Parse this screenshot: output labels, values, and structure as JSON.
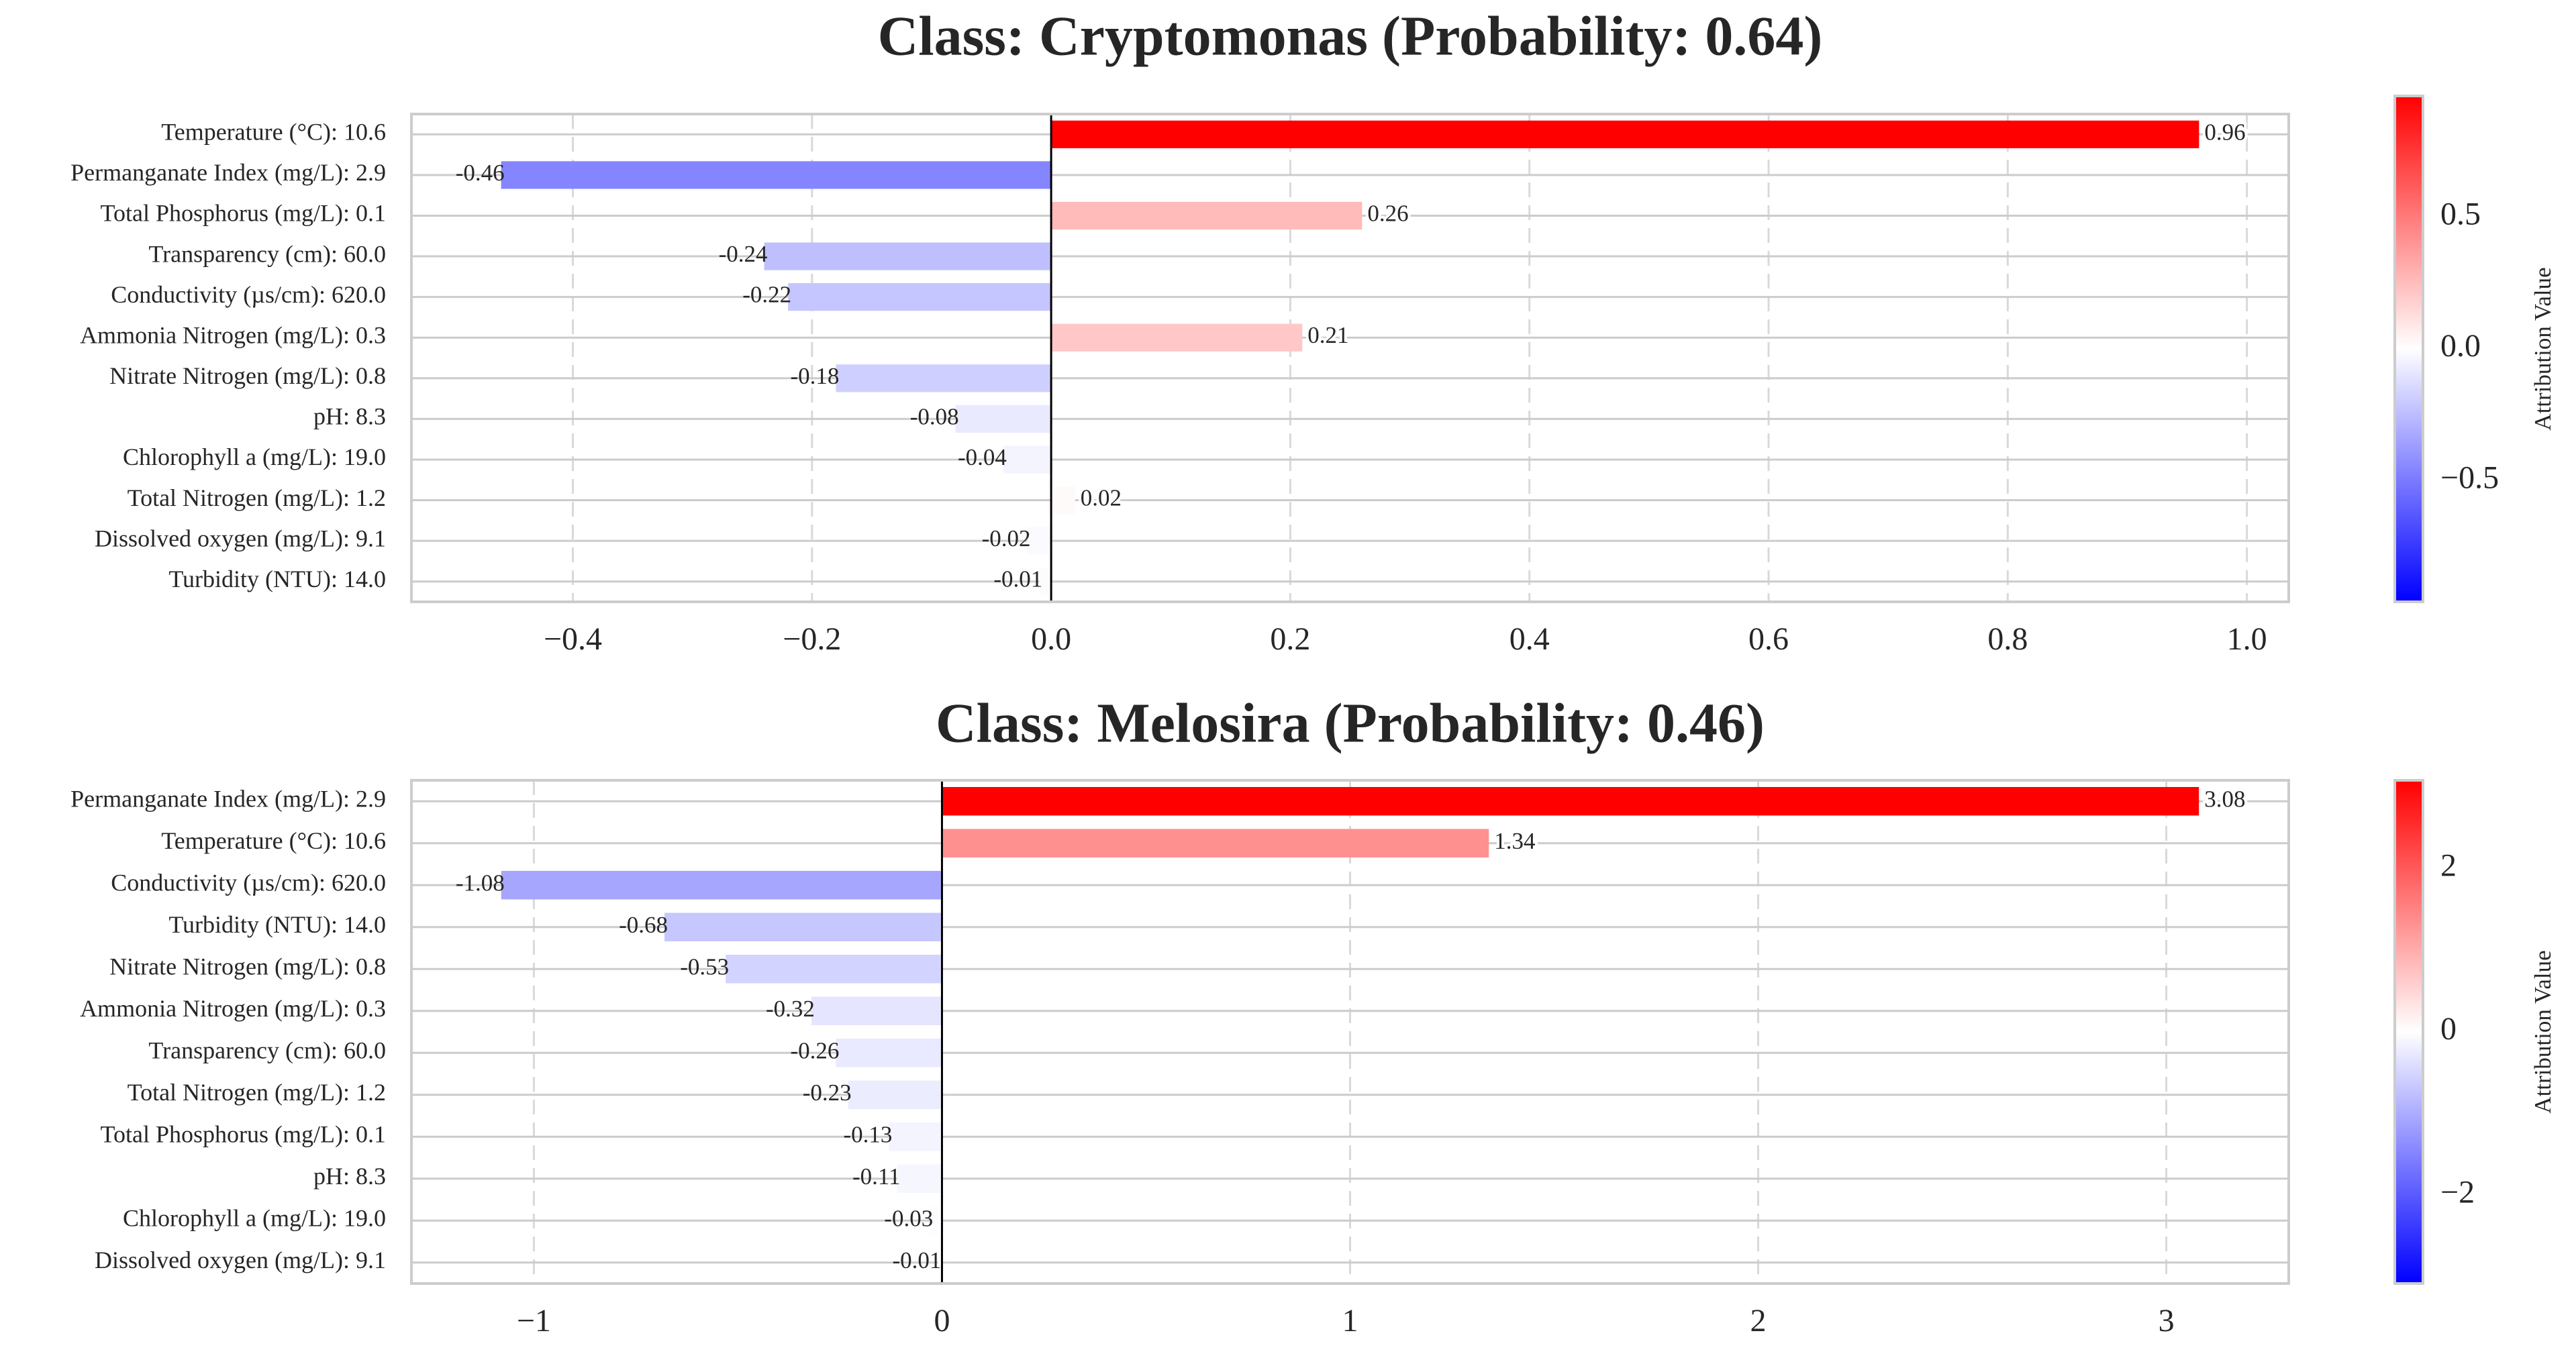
{
  "colors": {
    "positive": "#ff0000",
    "negative": "#0000ff",
    "neutral": "#ffffff",
    "grid": "#cccccc",
    "axis_frame": "#cccccc",
    "text": "#262626"
  },
  "chart_data": [
    {
      "type": "bar",
      "orientation": "horizontal",
      "title": "Class: Cryptomonas (Probability: 0.64)",
      "categories": [
        "Temperature (°C): 10.6",
        "Permanganate Index (mg/L): 2.9",
        "Total Phosphorus (mg/L): 0.1",
        "Transparency (cm): 60.0",
        "Conductivity (µs/cm): 620.0",
        "Ammonia Nitrogen (mg/L): 0.3",
        "Nitrate Nitrogen (mg/L): 0.8",
        "pH: 8.3",
        "Chlorophyll a (mg/L): 19.0",
        "Total Nitrogen (mg/L): 1.2",
        "Dissolved oxygen (mg/L): 9.1",
        "Turbidity (NTU): 14.0"
      ],
      "values": [
        0.96,
        -0.46,
        0.26,
        -0.24,
        -0.22,
        0.21,
        -0.18,
        -0.08,
        -0.04,
        0.02,
        -0.02,
        -0.01
      ],
      "value_labels": [
        "0.96",
        "-0.46",
        "0.26",
        "-0.24",
        "-0.22",
        "0.21",
        "-0.18",
        "-0.08",
        "-0.04",
        "0.02",
        "-0.02",
        "-0.01"
      ],
      "xlim": [
        -0.535,
        1.035
      ],
      "xticks": [
        -0.4,
        -0.2,
        0.0,
        0.2,
        0.4,
        0.6,
        0.8,
        1.0
      ],
      "xtick_labels": [
        "−0.4",
        "−0.2",
        "0.0",
        "0.2",
        "0.4",
        "0.6",
        "0.8",
        "1.0"
      ],
      "grid": true,
      "colorbar": {
        "label": "Attribution Value",
        "vmin": -0.96,
        "vmax": 0.96,
        "ticks": [
          0.5,
          0.0,
          -0.5
        ],
        "tick_labels": [
          "0.5",
          "0.0",
          "−0.5"
        ]
      }
    },
    {
      "type": "bar",
      "orientation": "horizontal",
      "title": "Class: Melosira (Probability: 0.46)",
      "categories": [
        "Permanganate Index (mg/L): 2.9",
        "Temperature (°C): 10.6",
        "Conductivity (µs/cm): 620.0",
        "Turbidity (NTU): 14.0",
        "Nitrate Nitrogen (mg/L): 0.8",
        "Ammonia Nitrogen (mg/L): 0.3",
        "Transparency (cm): 60.0",
        "Total Nitrogen (mg/L): 1.2",
        "Total Phosphorus (mg/L): 0.1",
        "pH: 8.3",
        "Chlorophyll a (mg/L): 19.0",
        "Dissolved oxygen (mg/L): 9.1"
      ],
      "values": [
        3.08,
        1.34,
        -1.08,
        -0.68,
        -0.53,
        -0.32,
        -0.26,
        -0.23,
        -0.13,
        -0.11,
        -0.03,
        -0.01
      ],
      "value_labels": [
        "3.08",
        "1.34",
        "-1.08",
        "-0.68",
        "-0.53",
        "-0.32",
        "-0.26",
        "-0.23",
        "-0.13",
        "-0.11",
        "-0.03",
        "-0.01"
      ],
      "xlim": [
        -1.3,
        3.3
      ],
      "xticks": [
        -1,
        0,
        1,
        2,
        3
      ],
      "xtick_labels": [
        "−1",
        "0",
        "1",
        "2",
        "3"
      ],
      "grid": true,
      "colorbar": {
        "label": "Attribution Value",
        "vmin": -3.08,
        "vmax": 3.08,
        "ticks": [
          2,
          0,
          -2
        ],
        "tick_labels": [
          "2",
          "0",
          "−2"
        ]
      }
    }
  ]
}
